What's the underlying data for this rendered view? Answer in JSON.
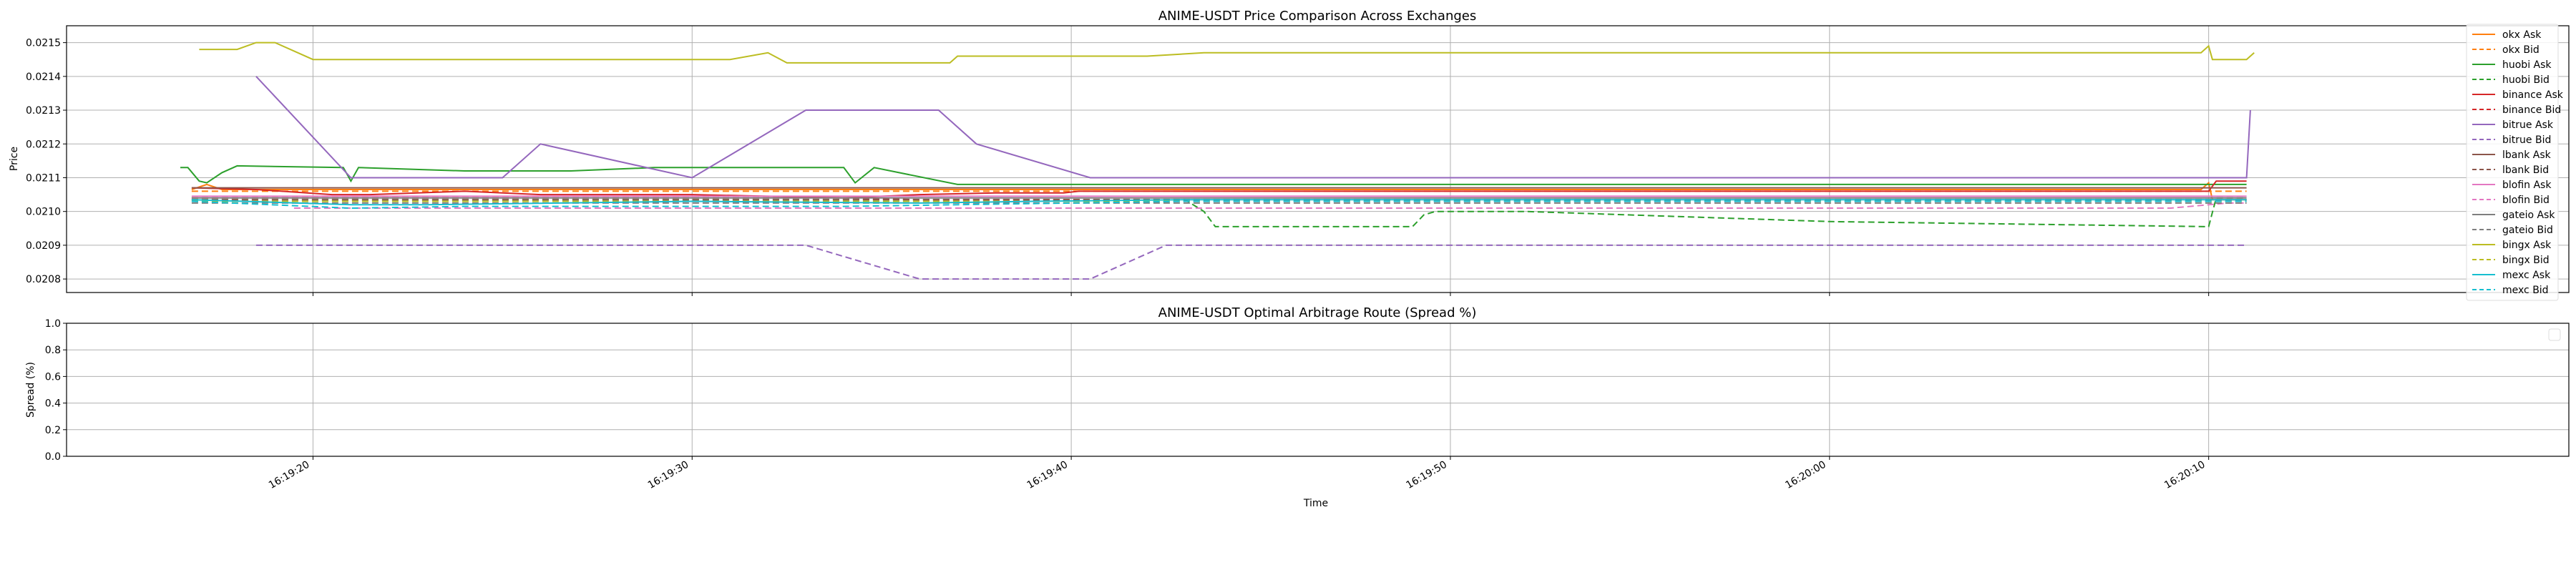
{
  "chart_data": [
    {
      "type": "line",
      "title": "ANIME-USDT Price Comparison Across Exchanges",
      "xlabel": "",
      "ylabel": "Price",
      "xlim": [
        "16:19:13.5",
        "16:20:19.5"
      ],
      "ylim": [
        0.02076,
        0.02155
      ],
      "yticks": [
        "0.0208",
        "0.0209",
        "0.0210",
        "0.0211",
        "0.0212",
        "0.0213",
        "0.0214",
        "0.0215"
      ],
      "grid": true,
      "legend": "right",
      "series": [
        {
          "name": "okx Ask",
          "color": "#ff7f0e",
          "dash": "solid",
          "points": [
            [
              "16:19:16.8",
              0.021065
            ],
            [
              "16:19:17.2",
              0.02108
            ],
            [
              "16:19:17.6",
              0.021065
            ],
            [
              "16:19:30.0",
              0.021065
            ],
            [
              "16:20:09.8",
              0.021065
            ],
            [
              "16:20:10.0",
              0.021085
            ],
            [
              "16:20:10.1",
              0.021035
            ],
            [
              "16:20:11.0",
              0.021035
            ]
          ]
        },
        {
          "name": "okx Bid",
          "color": "#ff7f0e",
          "dash": "dash",
          "points": [
            [
              "16:19:16.8",
              0.02106
            ],
            [
              "16:20:11.0",
              0.02106
            ]
          ]
        },
        {
          "name": "huobi Ask",
          "color": "#2ca02c",
          "dash": "solid",
          "points": [
            [
              "16:19:16.5",
              0.02113
            ],
            [
              "16:19:16.7",
              0.02113
            ],
            [
              "16:19:17.0",
              0.02109
            ],
            [
              "16:19:17.2",
              0.021085
            ],
            [
              "16:19:17.6",
              0.021115
            ],
            [
              "16:19:18.0",
              0.021135
            ],
            [
              "16:19:20.8",
              0.02113
            ],
            [
              "16:19:21.0",
              0.02109
            ],
            [
              "16:19:21.2",
              0.02113
            ],
            [
              "16:19:24.0",
              0.02112
            ],
            [
              "16:19:25.5",
              0.02112
            ],
            [
              "16:19:26.8",
              0.02112
            ],
            [
              "16:19:29.0",
              0.02113
            ],
            [
              "16:19:30.2",
              0.02113
            ],
            [
              "16:19:33.0",
              0.02113
            ],
            [
              "16:19:34.0",
              0.02113
            ],
            [
              "16:19:34.3",
              0.021085
            ],
            [
              "16:19:34.8",
              0.02113
            ],
            [
              "16:19:37.0",
              0.02108
            ],
            [
              "16:19:43.5",
              0.02108
            ],
            [
              "16:19:52.0",
              0.02108
            ],
            [
              "16:20:10.0",
              0.02108
            ],
            [
              "16:20:11.0",
              0.02108
            ]
          ]
        },
        {
          "name": "huobi Bid",
          "color": "#2ca02c",
          "dash": "dash",
          "points": [
            [
              "16:19:16.8",
              0.021035
            ],
            [
              "16:19:43.0",
              0.021035
            ],
            [
              "16:19:43.5",
              0.021
            ],
            [
              "16:19:43.8",
              0.020955
            ],
            [
              "16:19:49.0",
              0.020955
            ],
            [
              "16:19:49.3",
              0.02099
            ],
            [
              "16:19:49.6",
              0.021
            ],
            [
              "16:19:52.0",
              0.021
            ],
            [
              "16:20:00.0",
              0.02097
            ],
            [
              "16:20:10.0",
              0.020955
            ],
            [
              "16:20:10.2",
              0.02104
            ],
            [
              "16:20:11.0",
              0.02104
            ]
          ]
        },
        {
          "name": "binance Ask",
          "color": "#d62728",
          "dash": "solid",
          "points": [
            [
              "16:19:16.8",
              0.02107
            ],
            [
              "16:19:18.5",
              0.021065
            ],
            [
              "16:19:20.5",
              0.02105
            ],
            [
              "16:19:21.5",
              0.02105
            ],
            [
              "16:19:24.0",
              0.02106
            ],
            [
              "16:19:26.0",
              0.02105
            ],
            [
              "16:19:28.0",
              0.02105
            ],
            [
              "16:19:30.0",
              0.02105
            ],
            [
              "16:19:34.0",
              0.02104
            ],
            [
              "16:19:36.0",
              0.02105
            ],
            [
              "16:19:38.0",
              0.021055
            ],
            [
              "16:19:39.8",
              0.021055
            ],
            [
              "16:19:40.2",
              0.02106
            ],
            [
              "16:19:42.0",
              0.02106
            ],
            [
              "16:20:10.0",
              0.02106
            ],
            [
              "16:20:10.2",
              0.02109
            ],
            [
              "16:20:11.0",
              0.02109
            ]
          ]
        },
        {
          "name": "binance Bid",
          "color": "#d62728",
          "dash": "dash",
          "points": [
            [
              "16:19:16.8",
              0.02104
            ],
            [
              "16:19:34.0",
              0.02104
            ],
            [
              "16:19:36.0",
              0.021035
            ],
            [
              "16:20:11.0",
              0.021035
            ]
          ]
        },
        {
          "name": "bitrue Ask",
          "color": "#9467bd",
          "dash": "solid",
          "points": [
            [
              "16:19:18.5",
              0.0214
            ],
            [
              "16:19:21.0",
              0.0211
            ],
            [
              "16:19:25.0",
              0.0211
            ],
            [
              "16:19:26.0",
              0.0212
            ],
            [
              "16:19:30.0",
              0.0211
            ],
            [
              "16:19:33.0",
              0.0213
            ],
            [
              "16:19:36.5",
              0.0213
            ],
            [
              "16:19:37.5",
              0.0212
            ],
            [
              "16:19:40.5",
              0.0211
            ],
            [
              "16:20:10.0",
              0.0211
            ],
            [
              "16:20:11.0",
              0.0211
            ],
            [
              "16:20:11.1",
              0.0213
            ]
          ]
        },
        {
          "name": "bitrue Bid",
          "color": "#9467bd",
          "dash": "dash",
          "points": [
            [
              "16:19:18.5",
              0.0209
            ],
            [
              "16:19:33.0",
              0.0209
            ],
            [
              "16:19:36.0",
              0.0208
            ],
            [
              "16:19:40.5",
              0.0208
            ],
            [
              "16:19:42.5",
              0.0209
            ],
            [
              "16:20:11.0",
              0.0209
            ]
          ]
        },
        {
          "name": "lbank Ask",
          "color": "#8c564b",
          "dash": "solid",
          "points": [
            [
              "16:19:16.8",
              0.02107
            ],
            [
              "16:20:11.0",
              0.02107
            ]
          ]
        },
        {
          "name": "lbank Bid",
          "color": "#8c564b",
          "dash": "dash",
          "points": [
            [
              "16:19:16.8",
              0.021035
            ],
            [
              "16:20:11.0",
              0.021035
            ]
          ]
        },
        {
          "name": "blofin Ask",
          "color": "#e377c2",
          "dash": "solid",
          "points": [
            [
              "16:19:16.8",
              0.021045
            ],
            [
              "16:20:11.0",
              0.021045
            ]
          ]
        },
        {
          "name": "blofin Bid",
          "color": "#e377c2",
          "dash": "dash",
          "points": [
            [
              "16:19:19.5",
              0.02101
            ],
            [
              "16:19:30.0",
              0.02101
            ],
            [
              "16:20:09.0",
              0.02101
            ],
            [
              "16:20:10.5",
              0.021025
            ],
            [
              "16:20:11.0",
              0.021025
            ]
          ]
        },
        {
          "name": "gateio Ask",
          "color": "#7f7f7f",
          "dash": "solid",
          "points": [
            [
              "16:19:16.8",
              0.02104
            ],
            [
              "16:20:11.0",
              0.02104
            ]
          ]
        },
        {
          "name": "gateio Bid",
          "color": "#7f7f7f",
          "dash": "dash",
          "points": [
            [
              "16:19:16.8",
              0.021025
            ],
            [
              "16:20:11.0",
              0.021025
            ]
          ]
        },
        {
          "name": "bingx Ask",
          "color": "#bcbd22",
          "dash": "solid",
          "points": [
            [
              "16:19:17.0",
              0.02148
            ],
            [
              "16:19:18.0",
              0.02148
            ],
            [
              "16:19:18.5",
              0.0215
            ],
            [
              "16:19:19.0",
              0.0215
            ],
            [
              "16:19:20.0",
              0.02145
            ],
            [
              "16:19:24.0",
              0.02145
            ],
            [
              "16:19:31.0",
              0.02145
            ],
            [
              "16:19:32.0",
              0.02147
            ],
            [
              "16:19:32.5",
              0.02144
            ],
            [
              "16:19:36.8",
              0.02144
            ],
            [
              "16:19:37.0",
              0.02146
            ],
            [
              "16:19:42.0",
              0.02146
            ],
            [
              "16:19:43.5",
              0.02147
            ],
            [
              "16:20:09.8",
              0.02147
            ],
            [
              "16:20:10.0",
              0.02149
            ],
            [
              "16:20:10.1",
              0.02145
            ],
            [
              "16:20:11.0",
              0.02145
            ],
            [
              "16:20:11.2",
              0.02147
            ]
          ]
        },
        {
          "name": "bingx Bid",
          "color": "#bcbd22",
          "dash": "dash",
          "points": [
            [
              "16:19:16.8",
              0.02103
            ],
            [
              "16:19:34.0",
              0.02103
            ],
            [
              "16:19:36.0",
              0.02103
            ],
            [
              "16:20:11.0",
              0.02103
            ]
          ]
        },
        {
          "name": "mexc Ask",
          "color": "#17becf",
          "dash": "solid",
          "points": [
            [
              "16:19:16.8",
              0.021035
            ],
            [
              "16:19:21.0",
              0.02102
            ],
            [
              "16:19:23.0",
              0.02102
            ],
            [
              "16:19:30.0",
              0.02103
            ],
            [
              "16:19:36.0",
              0.021025
            ],
            [
              "16:19:39.0",
              0.02103
            ],
            [
              "16:19:43.0",
              0.021035
            ],
            [
              "16:20:11.0",
              0.021035
            ]
          ]
        },
        {
          "name": "mexc Bid",
          "color": "#17becf",
          "dash": "dash",
          "points": [
            [
              "16:19:16.8",
              0.02103
            ],
            [
              "16:19:21.0",
              0.02101
            ],
            [
              "16:19:24.0",
              0.021015
            ],
            [
              "16:19:33.0",
              0.021015
            ],
            [
              "16:19:34.0",
              0.021015
            ],
            [
              "16:19:40.0",
              0.021025
            ],
            [
              "16:19:43.0",
              0.02103
            ],
            [
              "16:20:11.0",
              0.02103
            ]
          ]
        }
      ]
    },
    {
      "type": "line",
      "title": "ANIME-USDT Optimal Arbitrage Route (Spread %)",
      "xlabel": "Time",
      "ylabel": "Spread (%)",
      "xlim": [
        "16:19:13.5",
        "16:20:19.5"
      ],
      "ylim": [
        0.0,
        1.0
      ],
      "yticks": [
        "0.0",
        "0.2",
        "0.4",
        "0.6",
        "0.8",
        "1.0"
      ],
      "xticks": [
        "16:19:20",
        "16:19:30",
        "16:19:40",
        "16:19:50",
        "16:20:00",
        "16:20:10"
      ],
      "grid": true,
      "legend": "top-right",
      "series": []
    }
  ]
}
